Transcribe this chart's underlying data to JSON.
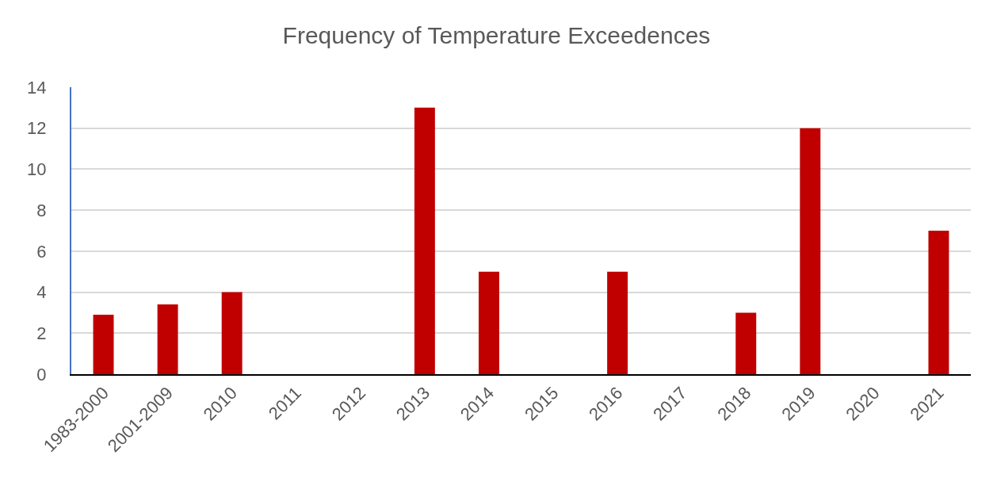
{
  "chart_data": {
    "type": "bar",
    "title": "Frequency of Temperature Exceedences",
    "categories": [
      "1983-2000",
      "2001-2009",
      "2010",
      "2011",
      "2012",
      "2013",
      "2014",
      "2015",
      "2016",
      "2017",
      "2018",
      "2019",
      "2020",
      "2021"
    ],
    "values": [
      2.9,
      3.4,
      4,
      0,
      0,
      13,
      5,
      0,
      5,
      0,
      3,
      12,
      0,
      7
    ],
    "color": "#c00000",
    "ylim": [
      0,
      14
    ],
    "yticks": [
      0,
      2,
      4,
      6,
      8,
      10,
      12,
      14
    ],
    "grid": "y"
  }
}
